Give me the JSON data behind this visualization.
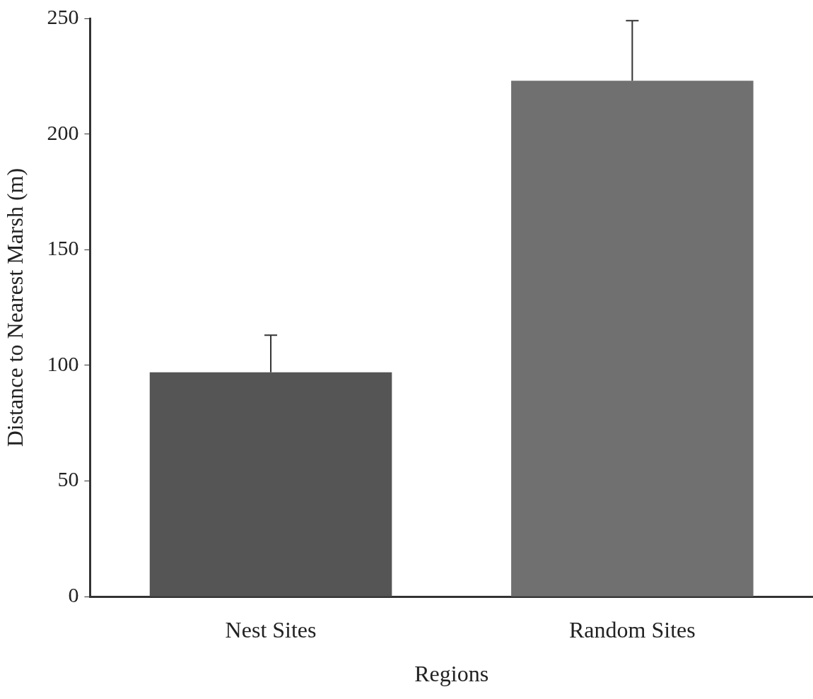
{
  "chart_data": {
    "type": "bar",
    "xlabel": "Regions",
    "ylabel": "Distance to Nearest Marsh (m)",
    "categories": [
      "Nest Sites",
      "Random Sites"
    ],
    "values": [
      97,
      223
    ],
    "colors": [
      "#555555",
      "#707070"
    ],
    "errors": [
      [
        97,
        113
      ],
      [
        223,
        249
      ]
    ],
    "ylim": [
      0,
      250
    ],
    "yticks": [
      0,
      50,
      100,
      150,
      200,
      250
    ],
    "grid": false,
    "legend": false
  }
}
